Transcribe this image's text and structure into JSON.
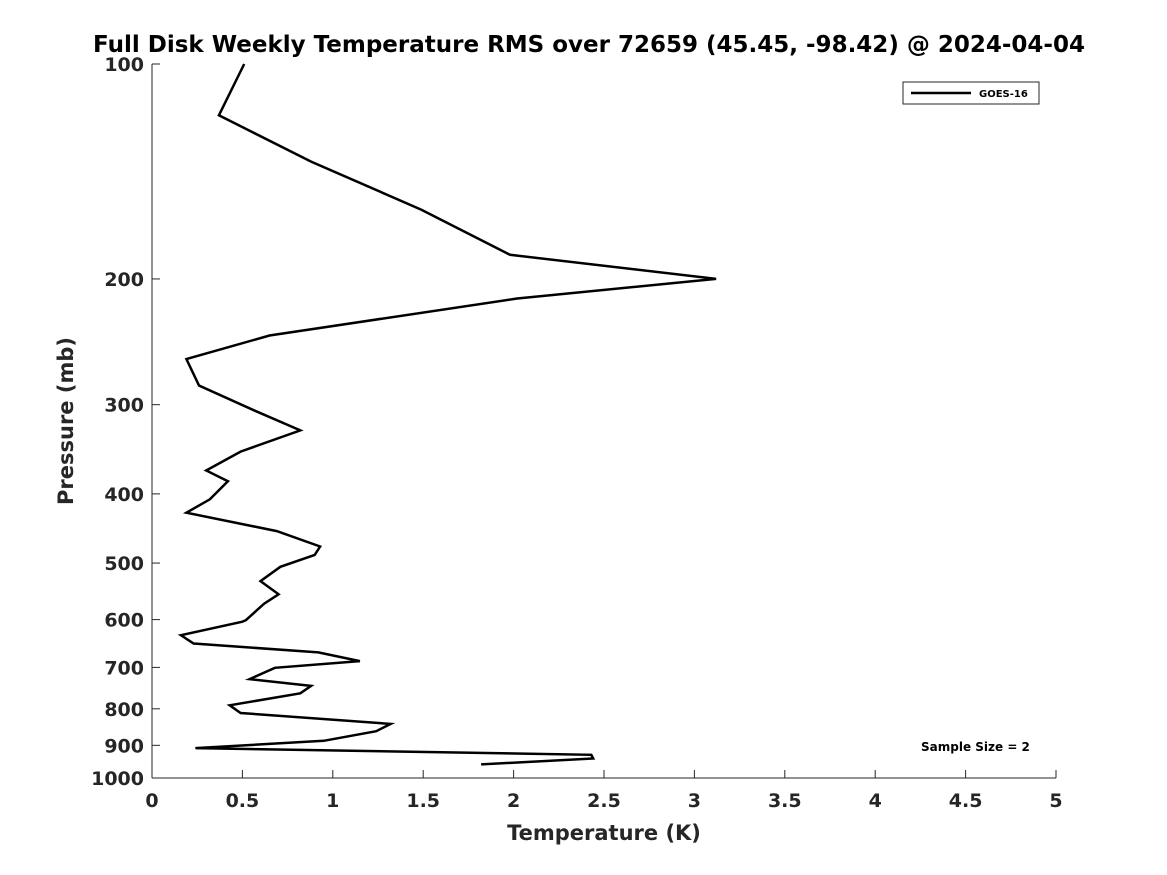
{
  "chart_data": {
    "type": "line",
    "title": "Full Disk Weekly Temperature RMS over 72659 (45.45, -98.42) @ 2024-04-04",
    "xlabel": "Temperature (K)",
    "ylabel": "Pressure (mb)",
    "xlim": [
      0,
      5
    ],
    "ylim": [
      100,
      1000
    ],
    "y_scale": "log",
    "y_reversed": true,
    "x_ticks": [
      "0",
      "0.5",
      "1",
      "1.5",
      "2",
      "2.5",
      "3",
      "3.5",
      "4",
      "4.5",
      "5"
    ],
    "y_ticks": [
      "100",
      "200",
      "300",
      "400",
      "500",
      "600",
      "700",
      "800",
      "900",
      "1000"
    ],
    "grid": false,
    "legend_position": "top-right",
    "annotation": "Sample Size = 2",
    "series": [
      {
        "name": "GOES-16",
        "color": "#000000",
        "x": [
          0.51,
          0.37,
          0.88,
          1.49,
          1.98,
          3.12,
          2.02,
          0.65,
          0.19,
          0.26,
          0.57,
          0.82,
          0.49,
          0.3,
          0.42,
          0.32,
          0.19,
          0.69,
          0.93,
          0.9,
          0.71,
          0.6,
          0.7,
          0.62,
          0.52,
          0.5,
          0.16,
          0.23,
          0.92,
          1.15,
          0.68,
          0.54,
          0.88,
          0.82,
          0.43,
          0.49,
          1.32,
          1.24,
          0.95,
          0.24,
          2.43,
          2.44,
          1.82
        ],
        "y": [
          100,
          118,
          137,
          160,
          185,
          200,
          213,
          240,
          259,
          282,
          306,
          326,
          349,
          371,
          384,
          407,
          425,
          451,
          474,
          487,
          506,
          530,
          553,
          570,
          601,
          604,
          631,
          648,
          667,
          686,
          701,
          727,
          743,
          761,
          791,
          811,
          840,
          860,
          887,
          908,
          928,
          939,
          957
        ]
      }
    ]
  }
}
